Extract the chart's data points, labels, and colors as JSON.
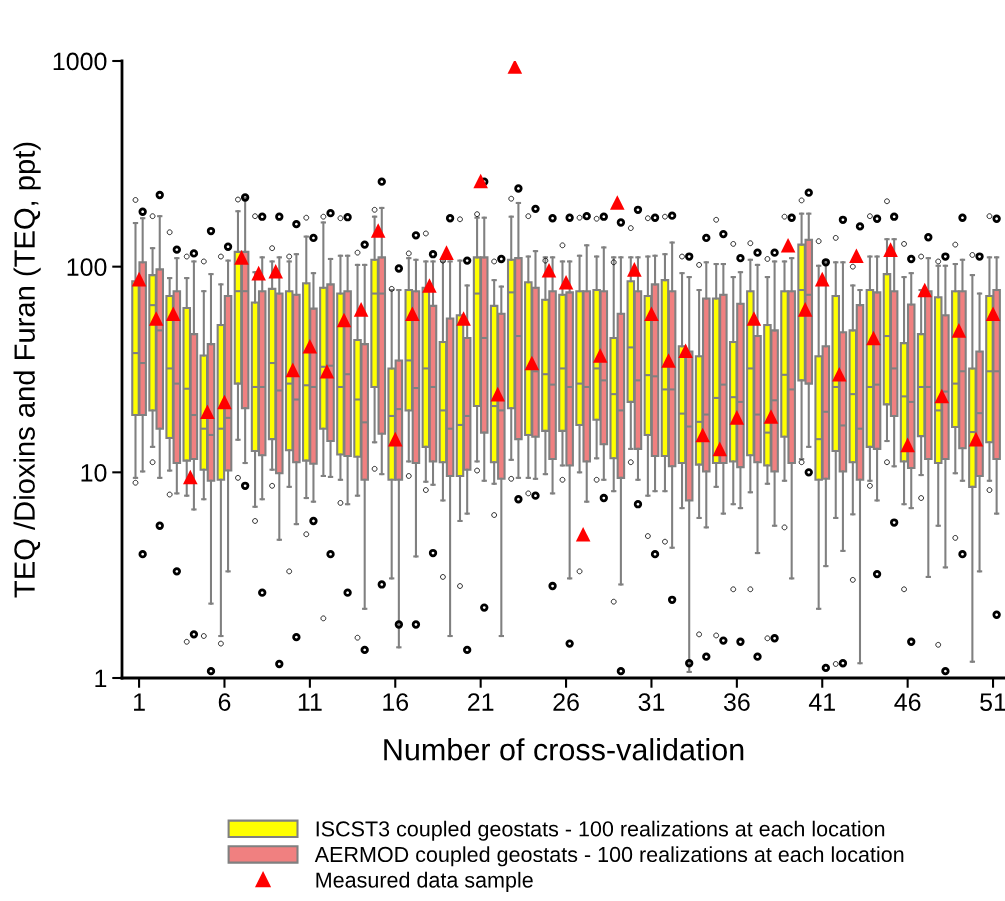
{
  "chart_data": {
    "type": "box",
    "xlabel": "Number of cross-validation",
    "ylabel": "TEQ /Dioxins and Furan (TEQ, ppt)",
    "categories": [
      "1",
      null,
      null,
      null,
      null,
      "6",
      null,
      null,
      null,
      null,
      "11",
      null,
      null,
      null,
      null,
      "16",
      null,
      null,
      null,
      null,
      "21",
      null,
      null,
      null,
      null,
      "26",
      null,
      null,
      null,
      null,
      "31",
      null,
      null,
      null,
      null,
      "36",
      null,
      null,
      null,
      null,
      "41",
      null,
      null,
      null,
      null,
      "46",
      null,
      null,
      null,
      null,
      "51"
    ],
    "log": "y",
    "ylim": [
      1,
      1000
    ],
    "yticks": [
      1,
      10,
      100,
      1000
    ],
    "grid": false,
    "legend": "bottom",
    "series": [
      {
        "name": "ISCST3 coupled geostats - 100 realizations at each location",
        "color": "#ffff00",
        "boxes": [
          {
            "low": 9.4,
            "q1": 19,
            "median": 38,
            "q3": 85,
            "high": 163,
            "outliers": [
              211,
              8.9
            ]
          },
          {
            "low": 13.3,
            "q1": 20,
            "median": 65,
            "q3": 91,
            "high": 123,
            "outliers": [
              176,
              11.2
            ]
          },
          {
            "low": 10.2,
            "q1": 14.7,
            "median": 32,
            "q3": 72,
            "high": 88,
            "outliers": [
              147,
              7.8
            ]
          },
          {
            "low": 7.7,
            "q1": 11.4,
            "median": 25.5,
            "q3": 63,
            "high": 88,
            "outliers": [
              112,
              1.5
            ]
          },
          {
            "low": 7.4,
            "q1": 10.3,
            "median": 16.3,
            "q3": 37,
            "high": 76,
            "outliers": [
              106,
              1.6
            ]
          },
          {
            "low": 1.6,
            "q1": 9.2,
            "median": 16.3,
            "q3": 52,
            "high": 82,
            "outliers": [
              112,
              1.47
            ]
          },
          {
            "low": 14.4,
            "q1": 27,
            "median": 76,
            "q3": 118,
            "high": 186,
            "outliers": [
              212,
              9.4
            ]
          },
          {
            "low": 6.8,
            "q1": 12.7,
            "median": 26,
            "q3": 67,
            "high": 94,
            "outliers": [
              176,
              5.8
            ]
          },
          {
            "low": 10.3,
            "q1": 14.5,
            "median": 34,
            "q3": 78,
            "high": 106,
            "outliers": [
              123,
              8.6
            ]
          },
          {
            "low": 8.5,
            "q1": 12.8,
            "median": 27,
            "q3": 76,
            "high": 106,
            "outliers": [
              112,
              3.3
            ]
          },
          {
            "low": 7.5,
            "q1": 11.4,
            "median": 26.5,
            "q3": 83,
            "high": 140,
            "outliers": [
              173,
              5
            ]
          },
          {
            "low": 9.6,
            "q1": 16.3,
            "median": 32.6,
            "q3": 79,
            "high": 164,
            "outliers": [
              175,
              1.95
            ]
          },
          {
            "low": 9.2,
            "q1": 12.2,
            "median": 26,
            "q3": 74,
            "high": 113,
            "outliers": [
              172,
              7.1
            ]
          },
          {
            "low": 7.7,
            "q1": 11.9,
            "median": 22.6,
            "q3": 44,
            "high": 102,
            "outliers": [
              117,
              1.57
            ]
          },
          {
            "low": 14,
            "q1": 26,
            "median": 74,
            "q3": 108,
            "high": 175,
            "outliers": [
              189,
              10.4
            ]
          },
          {
            "low": 3.05,
            "q1": 9.2,
            "median": 18.8,
            "q3": 32,
            "high": 77,
            "outliers": [
              78
            ]
          },
          {
            "low": 11.3,
            "q1": 20,
            "median": 35,
            "q3": 77,
            "high": 110,
            "outliers": [
              116,
              9.6
            ]
          },
          {
            "low": 9,
            "q1": 13.3,
            "median": 32,
            "q3": 79,
            "high": 106,
            "outliers": [
              145,
              8.2
            ]
          },
          {
            "low": 7.3,
            "q1": 11.2,
            "median": 20,
            "q3": 43,
            "high": 106,
            "outliers": [
              107,
              3.1
            ]
          },
          {
            "low": 5.8,
            "q1": 9.6,
            "median": 17,
            "q3": 58,
            "high": 107,
            "outliers": [
              170,
              2.8
            ]
          },
          {
            "low": 11.3,
            "q1": 21,
            "median": 74,
            "q3": 111,
            "high": 173,
            "outliers": [
              180,
              10.2
            ]
          },
          {
            "low": 8.8,
            "q1": 11.2,
            "median": 21,
            "q3": 64.5,
            "high": 86,
            "outliers": [
              106,
              6.2
            ]
          },
          {
            "low": 11.5,
            "q1": 20.5,
            "median": 75,
            "q3": 108,
            "high": 175,
            "outliers": [
              214,
              9.3
            ]
          },
          {
            "low": 9.4,
            "q1": 15.2,
            "median": 32,
            "q3": 84,
            "high": 112,
            "outliers": [
              176,
              7.9
            ]
          },
          {
            "low": 9.8,
            "q1": 15.9,
            "median": 30,
            "q3": 69,
            "high": 111,
            "outliers": [
              107
            ]
          },
          {
            "low": 10.8,
            "q1": 15.9,
            "median": 32,
            "q3": 73,
            "high": 106,
            "outliers": [
              127,
              9.2
            ]
          },
          {
            "low": 10,
            "q1": 17,
            "median": 27,
            "q3": 76,
            "high": 113,
            "outliers": [
              173,
              3.3
            ]
          },
          {
            "low": 11.7,
            "q1": 18,
            "median": 32,
            "q3": 77,
            "high": 112,
            "outliers": [
              171,
              9.2
            ]
          },
          {
            "low": 8.1,
            "q1": 11.7,
            "median": 24,
            "q3": 45,
            "high": 111,
            "outliers": [
              105,
              2.35
            ]
          },
          {
            "low": 13,
            "q1": 22,
            "median": 40.5,
            "q3": 85,
            "high": 111,
            "outliers": [
              154,
              11.2
            ]
          },
          {
            "low": 7.7,
            "q1": 15.2,
            "median": 29.7,
            "q3": 72,
            "high": 112,
            "outliers": [
              172,
              4.9
            ]
          },
          {
            "low": 8.1,
            "q1": 12,
            "median": 25.3,
            "q3": 86,
            "high": 115,
            "outliers": [
              175,
              4.6
            ]
          },
          {
            "low": 6.7,
            "q1": 11.1,
            "median": 19.3,
            "q3": 41,
            "high": 93,
            "outliers": [
              112
            ]
          },
          {
            "low": 6,
            "q1": 10.9,
            "median": 17.6,
            "q3": 36.7,
            "high": 77,
            "outliers": [
              102,
              1.63
            ]
          },
          {
            "low": 8.5,
            "q1": 11.1,
            "median": 23,
            "q3": 70,
            "high": 103,
            "outliers": [
              169,
              1.61
            ]
          },
          {
            "low": 7,
            "q1": 11.3,
            "median": 23.2,
            "q3": 43,
            "high": 89,
            "outliers": [
              129,
              2.7
            ]
          },
          {
            "low": 8,
            "q1": 12.1,
            "median": 32,
            "q3": 76,
            "high": 108,
            "outliers": [
              130,
              2.7
            ]
          },
          {
            "low": 8.8,
            "q1": 10.8,
            "median": 15.6,
            "q3": 52,
            "high": 89,
            "outliers": [
              109,
              1.56
            ]
          },
          {
            "low": 9.1,
            "q1": 14.9,
            "median": 29.8,
            "q3": 76,
            "high": 106,
            "outliers": [
              175,
              5.4
            ]
          },
          {
            "low": 11.6,
            "q1": 28,
            "median": 77,
            "q3": 128,
            "high": 181,
            "outliers": [
              210,
              11.2
            ]
          },
          {
            "low": 2.17,
            "q1": 9.2,
            "median": 14.5,
            "q3": 36.7,
            "high": 101,
            "outliers": [
              133
            ]
          },
          {
            "low": 6,
            "q1": 12.7,
            "median": 26,
            "q3": 72,
            "high": 105,
            "outliers": [
              138,
              1.17
            ]
          },
          {
            "low": 6.25,
            "q1": 11.2,
            "median": 24,
            "q3": 49,
            "high": 81,
            "outliers": [
              100,
              3
            ]
          },
          {
            "low": 9.1,
            "q1": 13.3,
            "median": 26,
            "q3": 77,
            "high": 112,
            "outliers": [
              176,
              8.6
            ]
          },
          {
            "low": 14.2,
            "q1": 21.4,
            "median": 46,
            "q3": 92,
            "high": 136,
            "outliers": [
              208,
              11.2
            ]
          },
          {
            "low": 7,
            "q1": 11.3,
            "median": 23.4,
            "q3": 42.5,
            "high": 89,
            "outliers": [
              129,
              2.7
            ]
          },
          {
            "low": 9.7,
            "q1": 15,
            "median": 26,
            "q3": 47,
            "high": 77,
            "outliers": [
              112,
              7.5
            ]
          },
          {
            "low": 5.5,
            "q1": 11.1,
            "median": 20,
            "q3": 71,
            "high": 101,
            "outliers": [
              106,
              1.45
            ]
          },
          {
            "low": 9.9,
            "q1": 16.6,
            "median": 27,
            "q3": 76,
            "high": 103,
            "outliers": [
              128,
              4.8
            ]
          },
          {
            "low": 1.2,
            "q1": 8.5,
            "median": 15.7,
            "q3": 32,
            "high": 91,
            "outliers": [
              114
            ]
          },
          {
            "low": 9.1,
            "q1": 14,
            "median": 31,
            "q3": 72,
            "high": 111,
            "outliers": [
              176,
              8.2
            ]
          }
        ]
      },
      {
        "name": "AERMOD coupled geostats - 100 realizations at each location",
        "color": "#f08080",
        "boxes": [
          {
            "low": 10.1,
            "q1": 19,
            "median": 34,
            "q3": 105,
            "high": 172,
            "outliers": [
              185,
              4
            ]
          },
          {
            "low": 9.4,
            "q1": 16.3,
            "median": 49,
            "q3": 97,
            "high": 176,
            "outliers": [
              223,
              5.5
            ]
          },
          {
            "low": 7.9,
            "q1": 11.1,
            "median": 27,
            "q3": 76,
            "high": 110,
            "outliers": [
              121,
              3.3
            ]
          },
          {
            "low": 6.6,
            "q1": 11.6,
            "median": 19,
            "q3": 47,
            "high": 106,
            "outliers": [
              116,
              1.63
            ]
          },
          {
            "low": 2.3,
            "q1": 9.1,
            "median": 15.2,
            "q3": 42,
            "high": 92,
            "outliers": [
              149,
              1.08
            ]
          },
          {
            "low": 3.3,
            "q1": 10.2,
            "median": 18.4,
            "q3": 72,
            "high": 107,
            "outliers": [
              125
            ]
          },
          {
            "low": 11.1,
            "q1": 20.5,
            "median": 76,
            "q3": 118,
            "high": 216,
            "outliers": [
              217,
              8.6
            ]
          },
          {
            "low": 7.4,
            "q1": 12.1,
            "median": 26,
            "q3": 76,
            "high": 111,
            "outliers": [
              175,
              2.6
            ]
          },
          {
            "low": 4.7,
            "q1": 9.9,
            "median": 25,
            "q3": 74,
            "high": 111,
            "outliers": [
              175,
              1.17
            ]
          },
          {
            "low": 5.6,
            "q1": 11.2,
            "median": 22.6,
            "q3": 73,
            "high": 115,
            "outliers": [
              161,
              1.58
            ]
          },
          {
            "low": 7.2,
            "q1": 11,
            "median": 26,
            "q3": 62.5,
            "high": 93,
            "outliers": [
              138,
              5.8
            ]
          },
          {
            "low": 9.5,
            "q1": 14.2,
            "median": 33,
            "q3": 82,
            "high": 109,
            "outliers": [
              182,
              4
            ]
          },
          {
            "low": 7,
            "q1": 12,
            "median": 30,
            "q3": 76,
            "high": 113,
            "outliers": [
              174,
              2.6
            ]
          },
          {
            "low": 2.17,
            "q1": 9.2,
            "median": 17.5,
            "q3": 42,
            "high": 102,
            "outliers": [
              128,
              1.37
            ]
          },
          {
            "low": 9.8,
            "q1": 15.4,
            "median": 74,
            "q3": 111,
            "high": 193,
            "outliers": [
              259,
              2.85
            ]
          },
          {
            "low": 1.41,
            "q1": 9.2,
            "median": 20.3,
            "q3": 35,
            "high": 77,
            "outliers": [
              98,
              1.82
            ]
          },
          {
            "low": 3.9,
            "q1": 11.1,
            "median": 25.7,
            "q3": 76,
            "high": 108,
            "outliers": [
              142,
              1.82
            ]
          },
          {
            "low": 8.7,
            "q1": 11.3,
            "median": 26,
            "q3": 64.5,
            "high": 106,
            "outliers": [
              115,
              4.05
            ]
          },
          {
            "low": 1.6,
            "q1": 9.6,
            "median": 16.3,
            "q3": 56,
            "high": 106,
            "outliers": [
              172
            ]
          },
          {
            "low": 6.3,
            "q1": 10.3,
            "median": 18.8,
            "q3": 45,
            "high": 81,
            "outliers": [
              107,
              1.37
            ]
          },
          {
            "low": 9.1,
            "q1": 15.6,
            "median": 45,
            "q3": 111,
            "high": 173,
            "outliers": [
              259,
              2.2
            ]
          },
          {
            "low": 1.6,
            "q1": 9.3,
            "median": 20,
            "q3": 59,
            "high": 80,
            "outliers": [
              109
            ]
          },
          {
            "low": 9.4,
            "q1": 14.5,
            "median": 46,
            "q3": 110,
            "high": 204,
            "outliers": [
              240,
              7.4
            ]
          },
          {
            "low": 9.3,
            "q1": 14.9,
            "median": 31,
            "q3": 79,
            "high": 119,
            "outliers": [
              191,
              7.7
            ]
          },
          {
            "low": 7.9,
            "q1": 11.6,
            "median": 26.7,
            "q3": 76,
            "high": 111,
            "outliers": [
              172,
              2.8
            ]
          },
          {
            "low": 3.05,
            "q1": 10.8,
            "median": 26,
            "q3": 75,
            "high": 106,
            "outliers": [
              173,
              1.47
            ]
          },
          {
            "low": 7.2,
            "q1": 11.3,
            "median": 26,
            "q3": 76,
            "high": 127,
            "outliers": [
              176
            ]
          },
          {
            "low": 9.2,
            "q1": 13.7,
            "median": 28,
            "q3": 76,
            "high": 124,
            "outliers": [
              175,
              7.5
            ]
          },
          {
            "low": 2.85,
            "q1": 9.4,
            "median": 20,
            "q3": 59,
            "high": 111,
            "outliers": [
              164,
              1.08
            ]
          },
          {
            "low": 9.2,
            "q1": 13,
            "median": 28,
            "q3": 76,
            "high": 111,
            "outliers": [
              189,
              7
            ]
          },
          {
            "low": 8.1,
            "q1": 12,
            "median": 29.3,
            "q3": 82,
            "high": 113,
            "outliers": [
              173,
              4
            ]
          },
          {
            "low": 4.3,
            "q1": 10.7,
            "median": 25.3,
            "q3": 76,
            "high": 131,
            "outliers": [
              177,
              2.4
            ]
          },
          {
            "low": 1.07,
            "q1": 7.3,
            "median": 16.7,
            "q3": 38.7,
            "high": 89,
            "outliers": [
              112,
              1.18
            ]
          },
          {
            "low": 5.4,
            "q1": 10.1,
            "median": 19.1,
            "q3": 70,
            "high": 105,
            "outliers": [
              138,
              1.27
            ]
          },
          {
            "low": 6.3,
            "q1": 11.1,
            "median": 26.7,
            "q3": 73,
            "high": 103,
            "outliers": [
              144,
              1.52
            ]
          },
          {
            "low": 6.7,
            "q1": 10.6,
            "median": 22,
            "q3": 66,
            "high": 94,
            "outliers": [
              110,
              1.5
            ]
          },
          {
            "low": 4.05,
            "q1": 11.2,
            "median": 19.1,
            "q3": 46,
            "high": 102,
            "outliers": [
              117,
              1.27
            ]
          },
          {
            "low": 5.5,
            "q1": 10.1,
            "median": 22.4,
            "q3": 49,
            "high": 106,
            "outliers": [
              117,
              1.56
            ]
          },
          {
            "low": 3.05,
            "q1": 11.1,
            "median": 25.3,
            "q3": 76,
            "high": 110,
            "outliers": [
              173
            ]
          },
          {
            "low": 13.3,
            "q1": 27,
            "median": 73,
            "q3": 135,
            "high": 181,
            "outliers": [
              229,
              10
            ]
          },
          {
            "low": 3.5,
            "q1": 9.3,
            "median": 19.7,
            "q3": 41,
            "high": 105,
            "outliers": [
              105,
              1.12
            ]
          },
          {
            "low": 4.15,
            "q1": 10.1,
            "median": 16.9,
            "q3": 48,
            "high": 105,
            "outliers": [
              169,
              1.18
            ]
          },
          {
            "low": 1.18,
            "q1": 9.2,
            "median": 16.3,
            "q3": 65,
            "high": 77,
            "outliers": [
              157
            ]
          },
          {
            "low": 7.3,
            "q1": 13,
            "median": 26.7,
            "q3": 75,
            "high": 112,
            "outliers": [
              171,
              3.2
            ]
          },
          {
            "low": 10.7,
            "q1": 18.8,
            "median": 32,
            "q3": 76,
            "high": 136,
            "outliers": [
              175,
              5.7
            ]
          },
          {
            "low": 6.7,
            "q1": 10.5,
            "median": 22,
            "q3": 65.5,
            "high": 93,
            "outliers": [
              109,
              1.5
            ]
          },
          {
            "low": 3.1,
            "q1": 11.6,
            "median": 26,
            "q3": 76,
            "high": 110,
            "outliers": [
              139
            ]
          },
          {
            "low": 3.45,
            "q1": 11.6,
            "median": 24.7,
            "q3": 58,
            "high": 101,
            "outliers": [
              112,
              1.08
            ]
          },
          {
            "low": 9.1,
            "q1": 13.1,
            "median": 31,
            "q3": 76,
            "high": 108,
            "outliers": [
              173,
              4
            ]
          },
          {
            "low": 3.3,
            "q1": 9.6,
            "median": 19.4,
            "q3": 38.7,
            "high": 74,
            "outliers": [
              112
            ]
          },
          {
            "low": 6.3,
            "q1": 11.6,
            "median": 31,
            "q3": 77,
            "high": 111,
            "outliers": [
              171,
              2.03
            ]
          }
        ]
      },
      {
        "name": "Measured data sample",
        "color": "#ff0000",
        "type": "scatter",
        "marker": "triangle",
        "values": [
          87,
          56,
          59,
          9.5,
          19.7,
          22,
          111,
          93,
          95,
          31.5,
          41,
          31,
          55,
          62,
          150,
          14.5,
          59,
          81,
          117,
          56,
          261,
          24,
          940,
          34,
          96,
          84,
          5,
          37,
          205,
          97,
          59,
          35,
          39,
          15.2,
          13,
          18.5,
          56,
          18.7,
          127,
          62,
          87,
          30,
          113,
          45,
          121,
          13.6,
          77,
          23.5,
          49,
          14.5,
          59
        ]
      }
    ]
  }
}
